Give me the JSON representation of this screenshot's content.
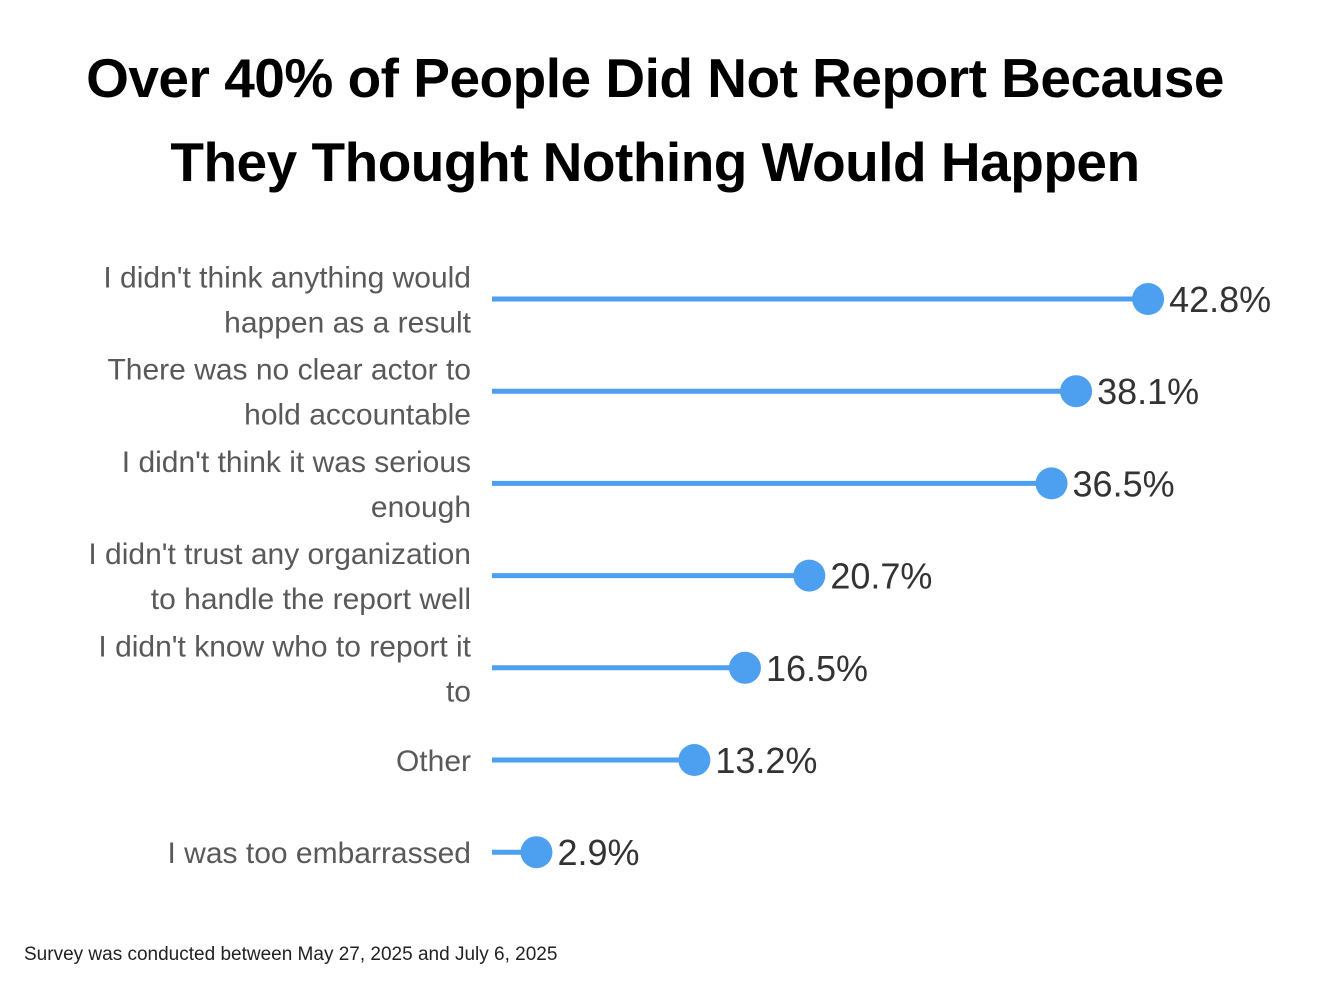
{
  "chart_data": {
    "type": "bar",
    "title_lines": [
      "Over 40% of People Did Not Report Because",
      "They Thought Nothing Would Happen"
    ],
    "categories": [
      [
        "I didn't think anything would",
        "happen as a result"
      ],
      [
        "There was no clear actor to",
        "hold accountable"
      ],
      [
        "I didn't think it was serious",
        "enough"
      ],
      [
        "I didn't trust any organization",
        "to handle the report well"
      ],
      [
        "I didn't know who to report it",
        "to"
      ],
      [
        "Other"
      ],
      [
        "I was too embarrassed"
      ]
    ],
    "values": [
      42.8,
      38.1,
      36.5,
      20.7,
      16.5,
      13.2,
      2.9
    ],
    "value_labels": [
      "42.8%",
      "38.1%",
      "36.5%",
      "20.7%",
      "16.5%",
      "13.2%",
      "2.9%"
    ],
    "style": "lollipop",
    "orientation": "horizontal",
    "series_color": "#4d9ff0",
    "grid": false,
    "xlim": [
      0,
      45
    ]
  },
  "footnote": "Survey was conducted between May 27, 2025 and July 6, 2025"
}
